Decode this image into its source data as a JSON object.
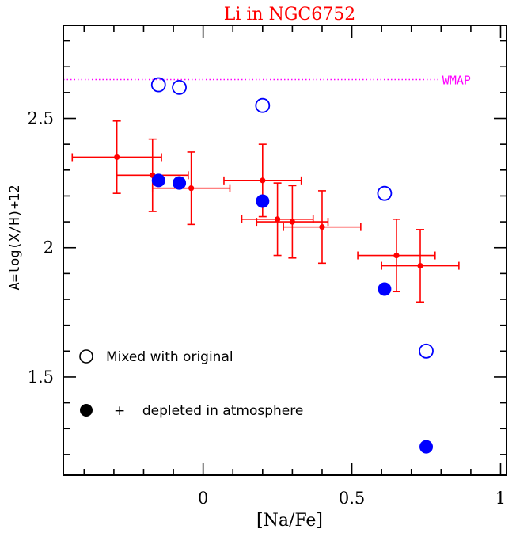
{
  "chart_data": {
    "type": "scatter",
    "title": "Li in NGC6752",
    "xlabel": "[Na/Fe]",
    "ylabel": "A=log(X/H)+12",
    "xlim": [
      -0.47,
      1.02
    ],
    "ylim": [
      1.12,
      2.86
    ],
    "x_ticks": [
      0,
      0.5,
      1
    ],
    "x_tick_labels": [
      "0",
      "0.5",
      "1"
    ],
    "y_ticks": [
      1.5,
      2,
      2.5
    ],
    "y_tick_labels": [
      "1.5",
      "2",
      "2.5"
    ],
    "grid": false,
    "legend_placement": "bottom-left",
    "reference_line": {
      "label": "WMAP",
      "y": 2.65,
      "color": "#ff00ff"
    },
    "series": [
      {
        "name": "Mixed with original",
        "marker": "open-circle",
        "color": "#0000ff",
        "points": [
          {
            "x": -0.15,
            "y": 2.63
          },
          {
            "x": -0.08,
            "y": 2.62
          },
          {
            "x": 0.2,
            "y": 2.55
          },
          {
            "x": 0.61,
            "y": 2.21
          },
          {
            "x": 0.75,
            "y": 1.6
          }
        ]
      },
      {
        "name": "+ depleted in atmosphere",
        "marker": "filled-circle",
        "color": "#0000ff",
        "points": [
          {
            "x": -0.15,
            "y": 2.26
          },
          {
            "x": -0.08,
            "y": 2.25
          },
          {
            "x": 0.2,
            "y": 2.18
          },
          {
            "x": 0.61,
            "y": 1.84
          },
          {
            "x": 0.75,
            "y": 1.23
          }
        ]
      },
      {
        "marker": "dot-errorbar",
        "color": "#ff0000",
        "points": [
          {
            "x": -0.29,
            "y": 2.35,
            "xerr": 0.15,
            "yerr": 0.14
          },
          {
            "x": -0.17,
            "y": 2.28,
            "xerr": 0.12,
            "yerr": 0.14
          },
          {
            "x": -0.04,
            "y": 2.23,
            "xerr": 0.13,
            "yerr": 0.14
          },
          {
            "x": 0.2,
            "y": 2.26,
            "xerr": 0.13,
            "yerr": 0.14
          },
          {
            "x": 0.25,
            "y": 2.11,
            "xerr": 0.12,
            "yerr": 0.14
          },
          {
            "x": 0.3,
            "y": 2.1,
            "xerr": 0.12,
            "yerr": 0.14
          },
          {
            "x": 0.4,
            "y": 2.08,
            "xerr": 0.13,
            "yerr": 0.14
          },
          {
            "x": 0.65,
            "y": 1.97,
            "xerr": 0.13,
            "yerr": 0.14
          },
          {
            "x": 0.73,
            "y": 1.93,
            "xerr": 0.13,
            "yerr": 0.14
          }
        ]
      }
    ],
    "legend": [
      {
        "marker": "open-circle",
        "color": "#000000",
        "label": "Mixed with original"
      },
      {
        "marker": "filled-circle",
        "color": "#000000",
        "label": "+    depleted in atmosphere"
      }
    ]
  }
}
